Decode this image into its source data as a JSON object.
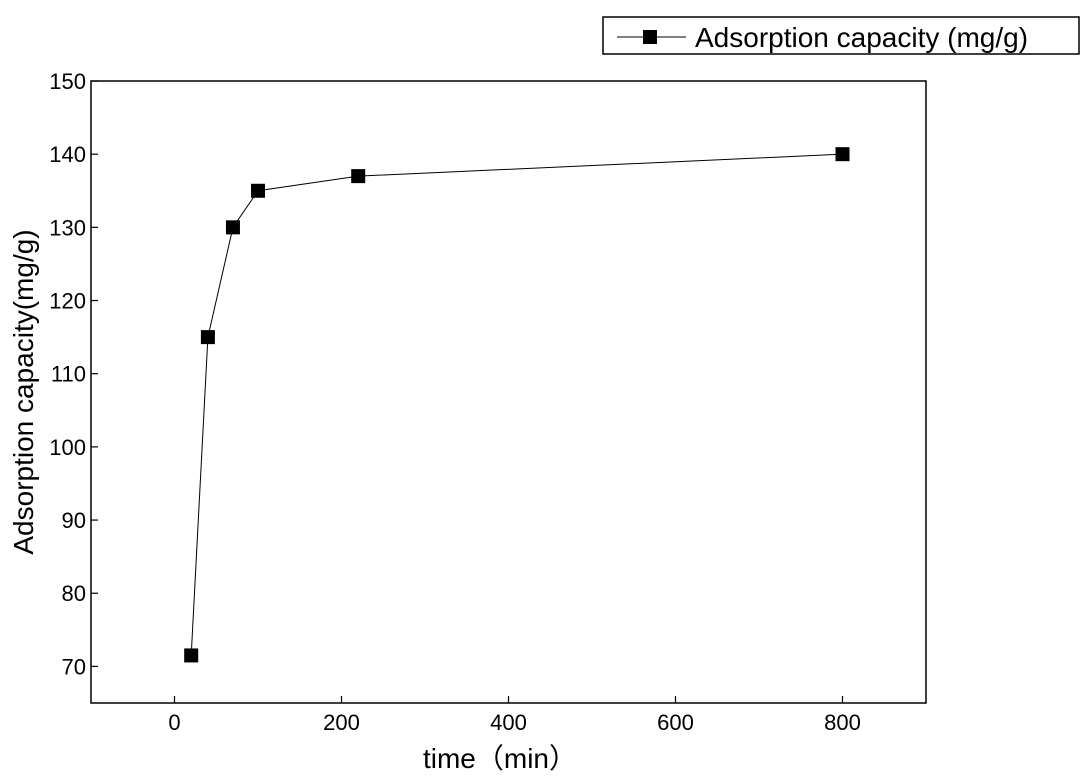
{
  "chart_data": {
    "type": "line",
    "xlabel": "time（min）",
    "ylabel": "Adsorption capacity(mg/g)",
    "xlim": [
      -100,
      900
    ],
    "ylim": [
      65,
      150
    ],
    "xticks": [
      0,
      200,
      400,
      600,
      800
    ],
    "yticks": [
      70,
      80,
      90,
      100,
      110,
      120,
      130,
      140,
      150
    ],
    "grid": false,
    "legend_position": "top-right",
    "series": [
      {
        "name": "Adsorption capacity (mg/g)",
        "marker": "square",
        "color": "#000000",
        "x": [
          20,
          40,
          70,
          100,
          220,
          800
        ],
        "y": [
          71.5,
          115,
          130,
          135,
          137,
          140
        ]
      }
    ]
  }
}
